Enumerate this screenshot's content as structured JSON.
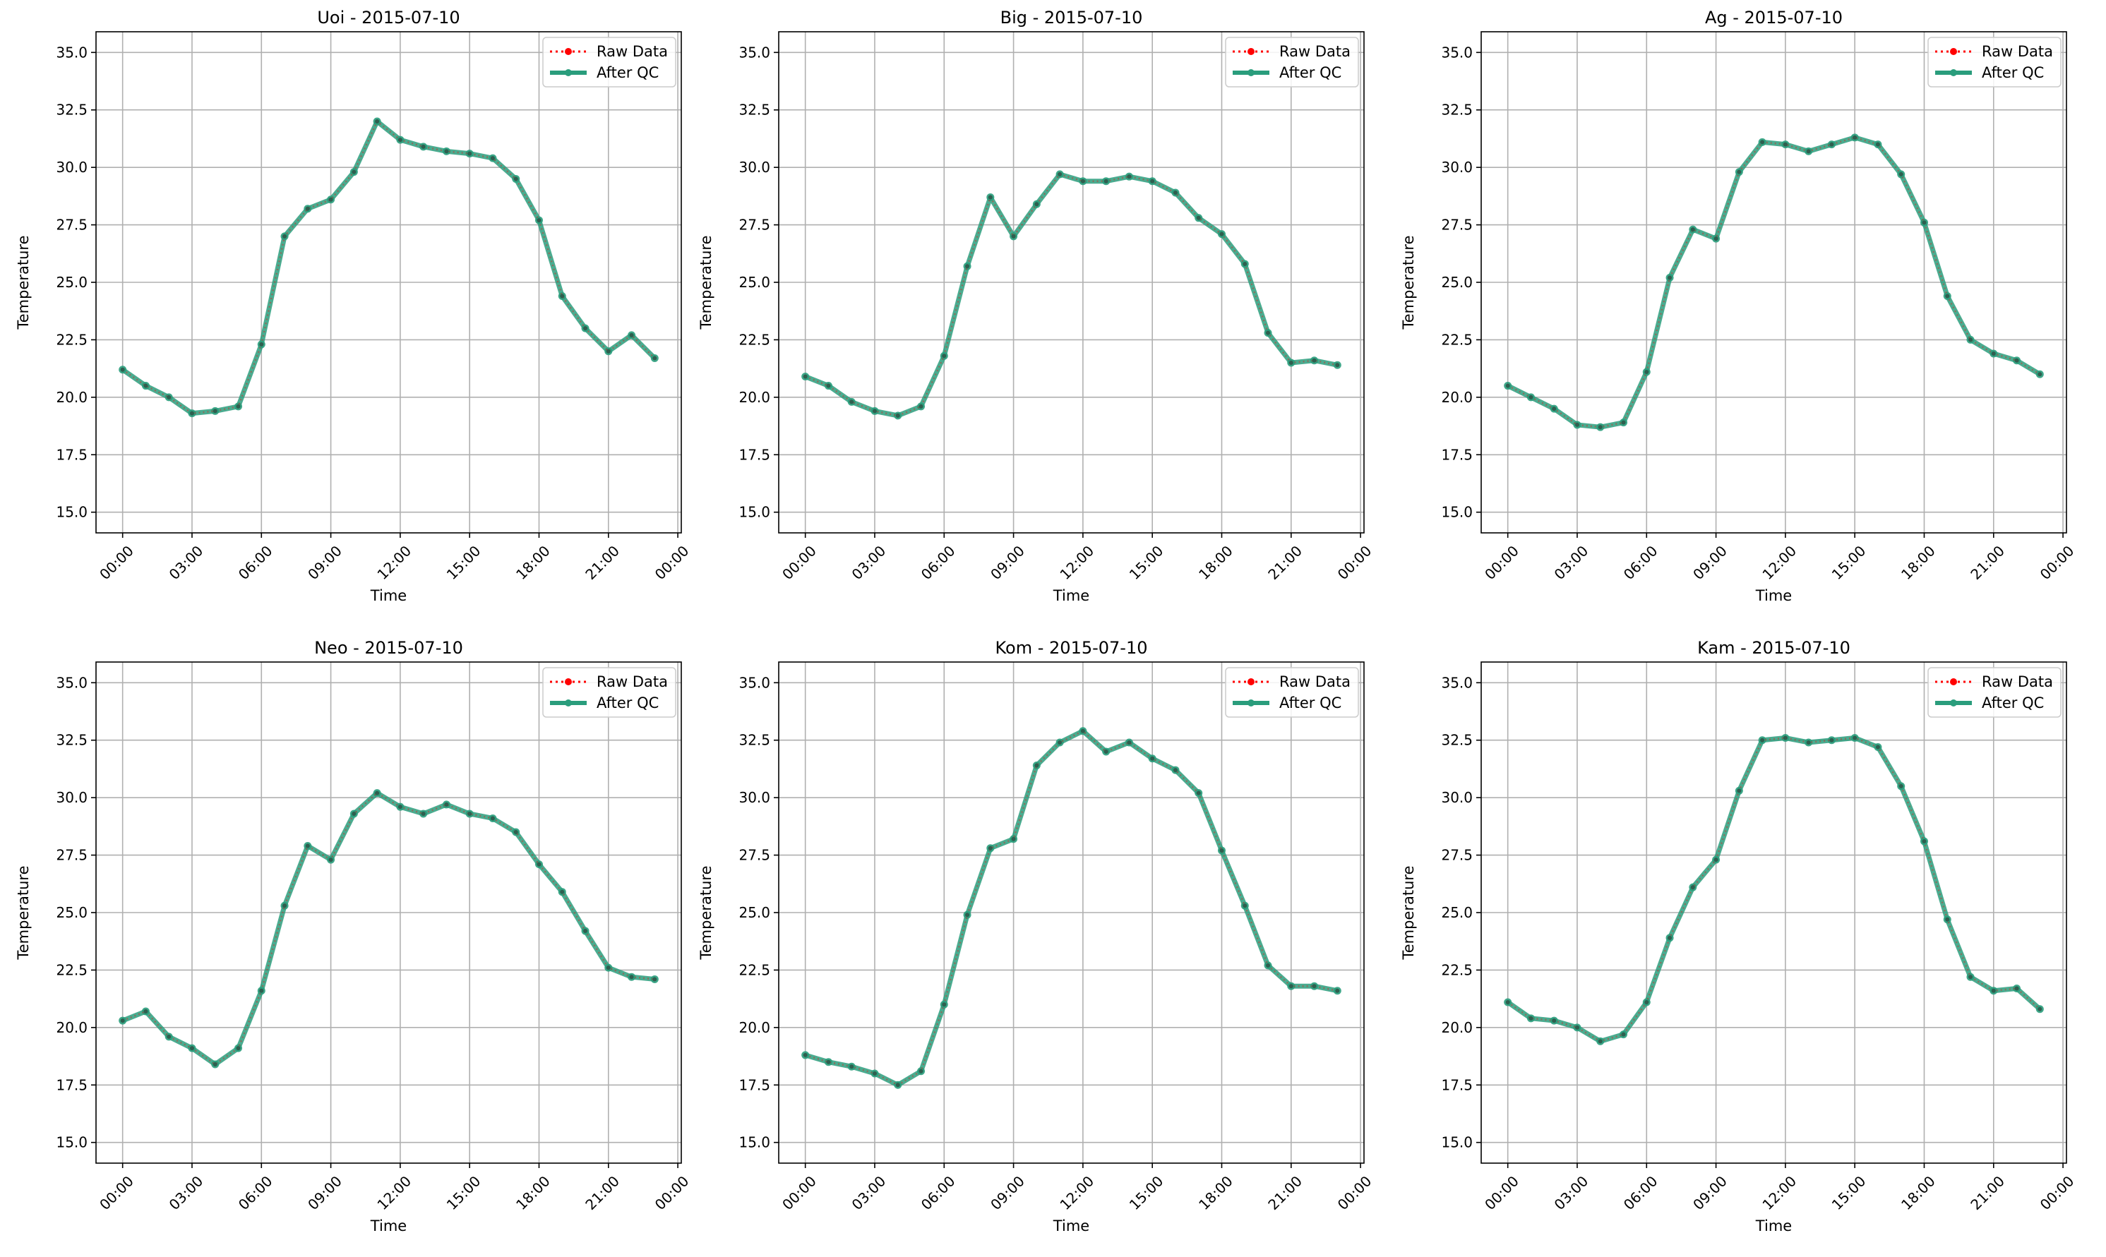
{
  "chart_data": [
    {
      "type": "line",
      "title": "Uoi - 2015-07-10",
      "xlabel": "Time",
      "ylabel": "Temperature",
      "ylim": [
        15.0,
        35.0
      ],
      "y_ticks": [
        "15.0",
        "17.5",
        "20.0",
        "22.5",
        "25.0",
        "27.5",
        "30.0",
        "32.5",
        "35.0"
      ],
      "x_ticks": [
        "00:00",
        "03:00",
        "06:00",
        "09:00",
        "12:00",
        "15:00",
        "18:00",
        "21:00",
        "00:00"
      ],
      "grid": true,
      "legend": "top-right",
      "x": [
        "00:00",
        "01:00",
        "02:00",
        "03:00",
        "04:00",
        "05:00",
        "06:00",
        "07:00",
        "08:00",
        "09:00",
        "10:00",
        "11:00",
        "12:00",
        "13:00",
        "14:00",
        "15:00",
        "16:00",
        "17:00",
        "18:00",
        "19:00",
        "20:00",
        "21:00",
        "22:00",
        "23:00"
      ],
      "series": [
        {
          "name": "Raw Data",
          "color": "#ff0000",
          "values": [
            21.2,
            20.5,
            20.0,
            19.3,
            19.4,
            19.6,
            22.3,
            27.0,
            28.2,
            28.6,
            29.8,
            32.0,
            31.2,
            30.9,
            30.7,
            30.6,
            30.4,
            29.5,
            27.7,
            24.4,
            23.0,
            22.0,
            22.7,
            21.7
          ]
        },
        {
          "name": "After QC",
          "color": "#2a9d7c",
          "values": [
            21.2,
            20.5,
            20.0,
            19.3,
            19.4,
            19.6,
            22.3,
            27.0,
            28.2,
            28.6,
            29.8,
            32.0,
            31.2,
            30.9,
            30.7,
            30.6,
            30.4,
            29.5,
            27.7,
            24.4,
            23.0,
            22.0,
            22.7,
            21.7
          ]
        }
      ]
    },
    {
      "type": "line",
      "title": "Big - 2015-07-10",
      "xlabel": "Time",
      "ylabel": "Temperature",
      "ylim": [
        15.0,
        35.0
      ],
      "y_ticks": [
        "15.0",
        "17.5",
        "20.0",
        "22.5",
        "25.0",
        "27.5",
        "30.0",
        "32.5",
        "35.0"
      ],
      "x_ticks": [
        "00:00",
        "03:00",
        "06:00",
        "09:00",
        "12:00",
        "15:00",
        "18:00",
        "21:00",
        "00:00"
      ],
      "grid": true,
      "legend": "top-right",
      "x": [
        "00:00",
        "01:00",
        "02:00",
        "03:00",
        "04:00",
        "05:00",
        "06:00",
        "07:00",
        "08:00",
        "09:00",
        "10:00",
        "11:00",
        "12:00",
        "13:00",
        "14:00",
        "15:00",
        "16:00",
        "17:00",
        "18:00",
        "19:00",
        "20:00",
        "21:00",
        "22:00",
        "23:00"
      ],
      "series": [
        {
          "name": "Raw Data",
          "color": "#ff0000",
          "values": [
            20.9,
            20.5,
            19.8,
            19.4,
            19.2,
            19.6,
            21.8,
            25.7,
            28.7,
            27.0,
            28.4,
            29.7,
            29.4,
            29.4,
            29.6,
            29.4,
            28.9,
            27.8,
            27.1,
            25.8,
            22.8,
            21.5,
            21.6,
            21.4
          ]
        },
        {
          "name": "After QC",
          "color": "#2a9d7c",
          "values": [
            20.9,
            20.5,
            19.8,
            19.4,
            19.2,
            19.6,
            21.8,
            25.7,
            28.7,
            27.0,
            28.4,
            29.7,
            29.4,
            29.4,
            29.6,
            29.4,
            28.9,
            27.8,
            27.1,
            25.8,
            22.8,
            21.5,
            21.6,
            21.4
          ]
        }
      ]
    },
    {
      "type": "line",
      "title": "Ag - 2015-07-10",
      "xlabel": "Time",
      "ylabel": "Temperature",
      "ylim": [
        15.0,
        35.0
      ],
      "y_ticks": [
        "15.0",
        "17.5",
        "20.0",
        "22.5",
        "25.0",
        "27.5",
        "30.0",
        "32.5",
        "35.0"
      ],
      "x_ticks": [
        "00:00",
        "03:00",
        "06:00",
        "09:00",
        "12:00",
        "15:00",
        "18:00",
        "21:00",
        "00:00"
      ],
      "grid": true,
      "legend": "top-right",
      "x": [
        "00:00",
        "01:00",
        "02:00",
        "03:00",
        "04:00",
        "05:00",
        "06:00",
        "07:00",
        "08:00",
        "09:00",
        "10:00",
        "11:00",
        "12:00",
        "13:00",
        "14:00",
        "15:00",
        "16:00",
        "17:00",
        "18:00",
        "19:00",
        "20:00",
        "21:00",
        "22:00",
        "23:00"
      ],
      "series": [
        {
          "name": "Raw Data",
          "color": "#ff0000",
          "values": [
            20.5,
            20.0,
            19.5,
            18.8,
            18.7,
            18.9,
            21.1,
            25.2,
            27.3,
            26.9,
            29.8,
            31.1,
            31.0,
            30.7,
            31.0,
            31.3,
            31.0,
            29.7,
            27.6,
            24.4,
            22.5,
            21.9,
            21.6,
            21.0
          ]
        },
        {
          "name": "After QC",
          "color": "#2a9d7c",
          "values": [
            20.5,
            20.0,
            19.5,
            18.8,
            18.7,
            18.9,
            21.1,
            25.2,
            27.3,
            26.9,
            29.8,
            31.1,
            31.0,
            30.7,
            31.0,
            31.3,
            31.0,
            29.7,
            27.6,
            24.4,
            22.5,
            21.9,
            21.6,
            21.0
          ]
        }
      ]
    },
    {
      "type": "line",
      "title": "Neo - 2015-07-10",
      "xlabel": "Time",
      "ylabel": "Temperature",
      "ylim": [
        15.0,
        35.0
      ],
      "y_ticks": [
        "15.0",
        "17.5",
        "20.0",
        "22.5",
        "25.0",
        "27.5",
        "30.0",
        "32.5",
        "35.0"
      ],
      "x_ticks": [
        "00:00",
        "03:00",
        "06:00",
        "09:00",
        "12:00",
        "15:00",
        "18:00",
        "21:00",
        "00:00"
      ],
      "grid": true,
      "legend": "top-right",
      "x": [
        "00:00",
        "01:00",
        "02:00",
        "03:00",
        "04:00",
        "05:00",
        "06:00",
        "07:00",
        "08:00",
        "09:00",
        "10:00",
        "11:00",
        "12:00",
        "13:00",
        "14:00",
        "15:00",
        "16:00",
        "17:00",
        "18:00",
        "19:00",
        "20:00",
        "21:00",
        "22:00",
        "23:00"
      ],
      "series": [
        {
          "name": "Raw Data",
          "color": "#ff0000",
          "values": [
            20.3,
            20.7,
            19.6,
            19.1,
            18.4,
            19.1,
            21.6,
            25.3,
            27.9,
            27.3,
            29.3,
            30.2,
            29.6,
            29.3,
            29.7,
            29.3,
            29.1,
            28.5,
            27.1,
            25.9,
            24.2,
            22.6,
            22.2,
            22.1
          ]
        },
        {
          "name": "After QC",
          "color": "#2a9d7c",
          "values": [
            20.3,
            20.7,
            19.6,
            19.1,
            18.4,
            19.1,
            21.6,
            25.3,
            27.9,
            27.3,
            29.3,
            30.2,
            29.6,
            29.3,
            29.7,
            29.3,
            29.1,
            28.5,
            27.1,
            25.9,
            24.2,
            22.6,
            22.2,
            22.1
          ]
        }
      ]
    },
    {
      "type": "line",
      "title": "Kom - 2015-07-10",
      "xlabel": "Time",
      "ylabel": "Temperature",
      "ylim": [
        15.0,
        35.0
      ],
      "y_ticks": [
        "15.0",
        "17.5",
        "20.0",
        "22.5",
        "25.0",
        "27.5",
        "30.0",
        "32.5",
        "35.0"
      ],
      "x_ticks": [
        "00:00",
        "03:00",
        "06:00",
        "09:00",
        "12:00",
        "15:00",
        "18:00",
        "21:00",
        "00:00"
      ],
      "grid": true,
      "legend": "top-right",
      "x": [
        "00:00",
        "01:00",
        "02:00",
        "03:00",
        "04:00",
        "05:00",
        "06:00",
        "07:00",
        "08:00",
        "09:00",
        "10:00",
        "11:00",
        "12:00",
        "13:00",
        "14:00",
        "15:00",
        "16:00",
        "17:00",
        "18:00",
        "19:00",
        "20:00",
        "21:00",
        "22:00",
        "23:00"
      ],
      "series": [
        {
          "name": "Raw Data",
          "color": "#ff0000",
          "values": [
            18.8,
            18.5,
            18.3,
            18.0,
            17.5,
            18.1,
            21.0,
            24.9,
            27.8,
            28.2,
            31.4,
            32.4,
            32.9,
            32.0,
            32.4,
            31.7,
            31.2,
            30.2,
            27.7,
            25.3,
            22.7,
            21.8,
            21.8,
            21.6
          ]
        },
        {
          "name": "After QC",
          "color": "#2a9d7c",
          "values": [
            18.8,
            18.5,
            18.3,
            18.0,
            17.5,
            18.1,
            21.0,
            24.9,
            27.8,
            28.2,
            31.4,
            32.4,
            32.9,
            32.0,
            32.4,
            31.7,
            31.2,
            30.2,
            27.7,
            25.3,
            22.7,
            21.8,
            21.8,
            21.6
          ]
        }
      ]
    },
    {
      "type": "line",
      "title": "Kam - 2015-07-10",
      "xlabel": "Time",
      "ylabel": "Temperature",
      "ylim": [
        15.0,
        35.0
      ],
      "y_ticks": [
        "15.0",
        "17.5",
        "20.0",
        "22.5",
        "25.0",
        "27.5",
        "30.0",
        "32.5",
        "35.0"
      ],
      "x_ticks": [
        "00:00",
        "03:00",
        "06:00",
        "09:00",
        "12:00",
        "15:00",
        "18:00",
        "21:00",
        "00:00"
      ],
      "grid": true,
      "legend": "top-right",
      "x": [
        "00:00",
        "01:00",
        "02:00",
        "03:00",
        "04:00",
        "05:00",
        "06:00",
        "07:00",
        "08:00",
        "09:00",
        "10:00",
        "11:00",
        "12:00",
        "13:00",
        "14:00",
        "15:00",
        "16:00",
        "17:00",
        "18:00",
        "19:00",
        "20:00",
        "21:00",
        "22:00",
        "23:00"
      ],
      "series": [
        {
          "name": "Raw Data",
          "color": "#ff0000",
          "values": [
            21.1,
            20.4,
            20.3,
            20.0,
            19.4,
            19.7,
            21.1,
            23.9,
            26.1,
            27.3,
            30.3,
            32.5,
            32.6,
            32.4,
            32.5,
            32.6,
            32.2,
            30.5,
            28.1,
            24.7,
            22.2,
            21.6,
            21.7,
            20.8
          ]
        },
        {
          "name": "After QC",
          "color": "#2a9d7c",
          "values": [
            21.1,
            20.4,
            20.3,
            20.0,
            19.4,
            19.7,
            21.1,
            23.9,
            26.1,
            27.3,
            30.3,
            32.5,
            32.6,
            32.4,
            32.5,
            32.6,
            32.2,
            30.5,
            28.1,
            24.7,
            22.2,
            21.6,
            21.7,
            20.8
          ]
        }
      ]
    }
  ]
}
